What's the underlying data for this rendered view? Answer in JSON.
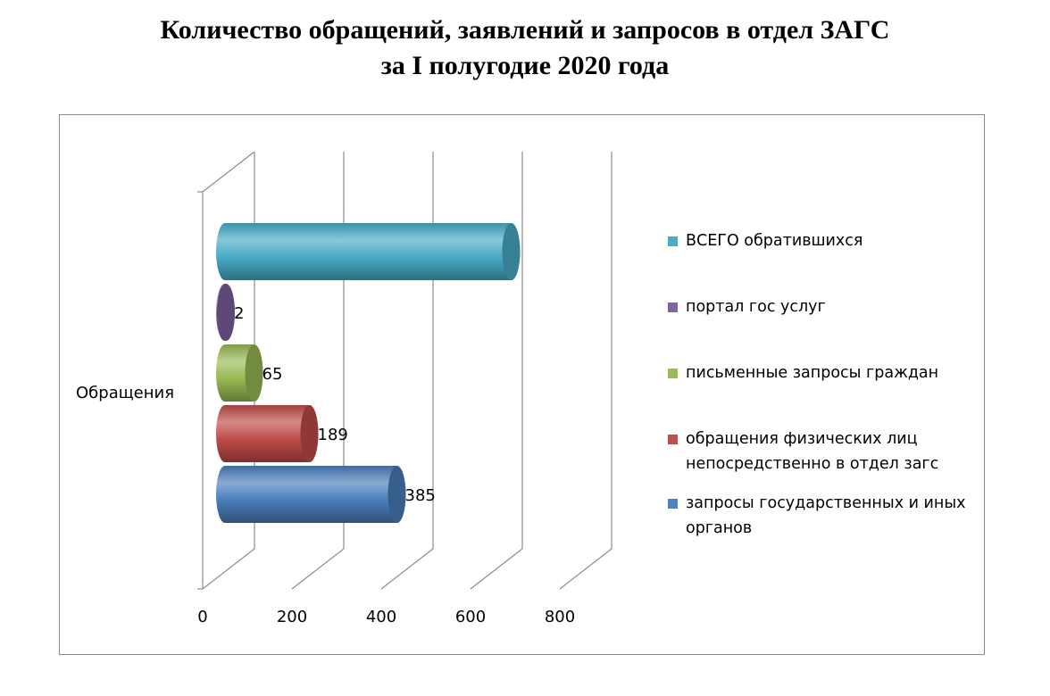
{
  "title": {
    "line1": "Количество обращений, заявлений и запросов в отдел ЗАГС",
    "line2": "за I полугодие 2020 года"
  },
  "chart_data": {
    "type": "bar",
    "orientation": "horizontal",
    "style": "3d-cylinder",
    "categories": [
      "Обращения"
    ],
    "series": [
      {
        "name": "запросы государственных и иных органов",
        "values": [
          385
        ],
        "label": "385",
        "color": "#4a7ebb"
      },
      {
        "name": "обращения физических лиц непосредственно в отдел загс",
        "values": [
          189
        ],
        "label": "189",
        "color": "#be4b48"
      },
      {
        "name": "письменные запросы граждан",
        "values": [
          65
        ],
        "label": "65",
        "color": "#98b954"
      },
      {
        "name": "портал гос услуг",
        "values": [
          2
        ],
        "label": "2",
        "color": "#7d60a0"
      },
      {
        "name": "ВСЕГО обратившихся",
        "values": [
          641
        ],
        "label": "",
        "color": "#46aac5"
      }
    ],
    "xlim": [
      0,
      800
    ],
    "xticks": [
      "0",
      "200",
      "400",
      "600",
      "800"
    ],
    "grid": true,
    "legend_position": "right"
  },
  "legend": {
    "items": [
      {
        "label": "ВСЕГО обратившихся",
        "color": "#4bacc6"
      },
      {
        "label": "портал гос услуг",
        "color": "#8064a2"
      },
      {
        "label": "письменные запросы граждан",
        "color": "#9bbb59"
      },
      {
        "label": "обращения физических лиц непосредственно в отдел загс",
        "color": "#c0504d"
      },
      {
        "label": "запросы государственных и иных органов",
        "color": "#4f81bd"
      }
    ]
  }
}
